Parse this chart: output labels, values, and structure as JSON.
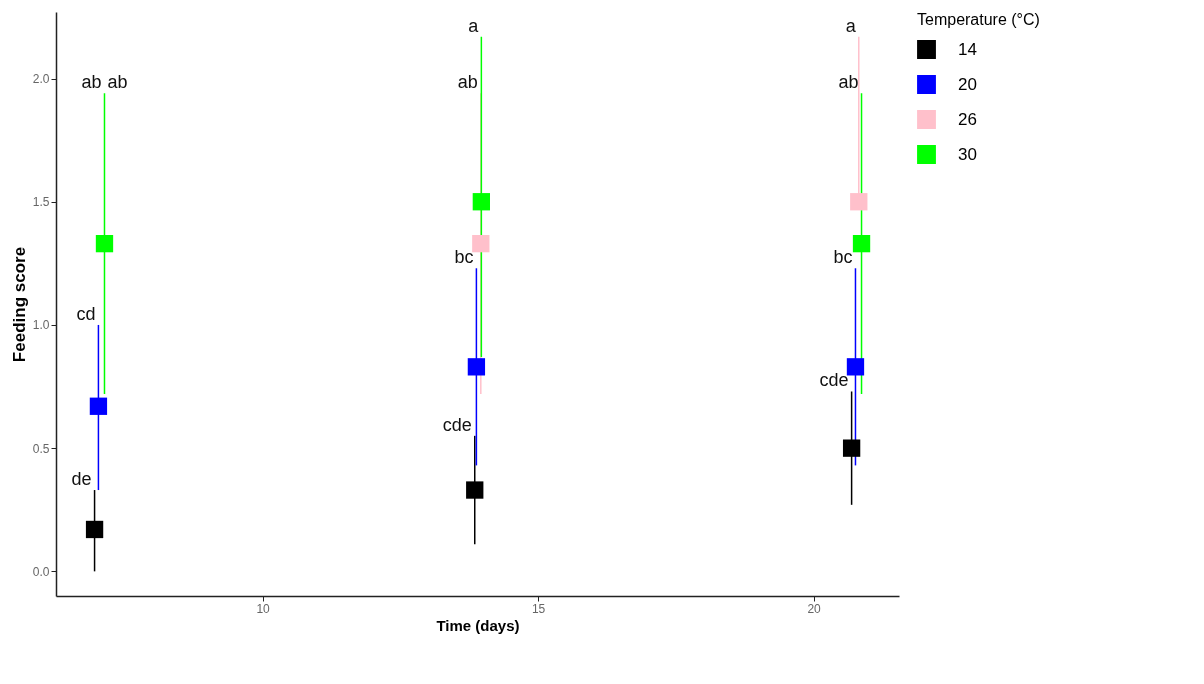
{
  "chart_data": {
    "type": "scatter",
    "xlabel": "Time (days)",
    "ylabel": "Feeding score",
    "legend_title": "Temperature (°C)",
    "xlim": [
      6.25,
      21.55
    ],
    "xticks": [
      10,
      15,
      20
    ],
    "ylim": [
      -0.1,
      2.27
    ],
    "yticks": [
      {
        "value": 0,
        "label": "0.0"
      },
      {
        "value": 0.5,
        "label": "0.5"
      },
      {
        "value": 1,
        "label": "1.0"
      },
      {
        "value": 1.5,
        "label": "1.5"
      },
      {
        "value": 2,
        "label": "2.0"
      }
    ],
    "grid": false,
    "legend": "right",
    "marker": "square",
    "series": [
      {
        "name": "14",
        "color": "#000000",
        "x": [
          6.95,
          13.85,
          20.69
        ],
        "values": [
          0.17,
          0.33,
          0.5
        ],
        "errors": [
          [
            0,
            0.33
          ],
          [
            0.11,
            0.55
          ],
          [
            0.27,
            0.73
          ]
        ]
      },
      {
        "name": "20",
        "color": "#0000ff",
        "x": [
          7.02,
          13.88,
          20.76
        ],
        "values": [
          0.67,
          0.83,
          0.83
        ],
        "errors": [
          [
            0.33,
            1.0
          ],
          [
            0.43,
            1.23
          ],
          [
            0.43,
            1.23
          ]
        ]
      },
      {
        "name": "26",
        "color": "#ffc0cb",
        "x": [
          null,
          13.96,
          20.82
        ],
        "values": [
          null,
          1.33,
          1.5
        ],
        "errors": [
          null,
          [
            0.72,
            1.94
          ],
          [
            1.5,
            2.17
          ]
        ]
      },
      {
        "name": "30",
        "color": "#00ff00",
        "x": [
          7.13,
          13.97,
          20.87
        ],
        "values": [
          1.33,
          1.5,
          1.33
        ],
        "errors": [
          [
            0.72,
            1.94
          ],
          [
            0.87,
            2.17
          ],
          [
            0.72,
            1.94
          ]
        ]
      }
    ],
    "annotations": [
      {
        "text": "de",
        "x": 6.95,
        "y": 0.33
      },
      {
        "text": "cd",
        "x": 7.02,
        "y": 1.0
      },
      {
        "text": "ab",
        "x": 7.13,
        "y": 1.94
      },
      {
        "text": "ab",
        "x": 7.13,
        "y": 1.94
      },
      {
        "text": "cde",
        "x": 13.85,
        "y": 0.55
      },
      {
        "text": "bc",
        "x": 13.88,
        "y": 1.23
      },
      {
        "text": "ab",
        "x": 13.96,
        "y": 1.94
      },
      {
        "text": "a",
        "x": 13.97,
        "y": 2.17
      },
      {
        "text": "cde",
        "x": 20.69,
        "y": 0.73
      },
      {
        "text": "bc",
        "x": 20.76,
        "y": 1.23
      },
      {
        "text": "a",
        "x": 20.82,
        "y": 2.17
      },
      {
        "text": "ab",
        "x": 20.87,
        "y": 1.94
      }
    ]
  }
}
